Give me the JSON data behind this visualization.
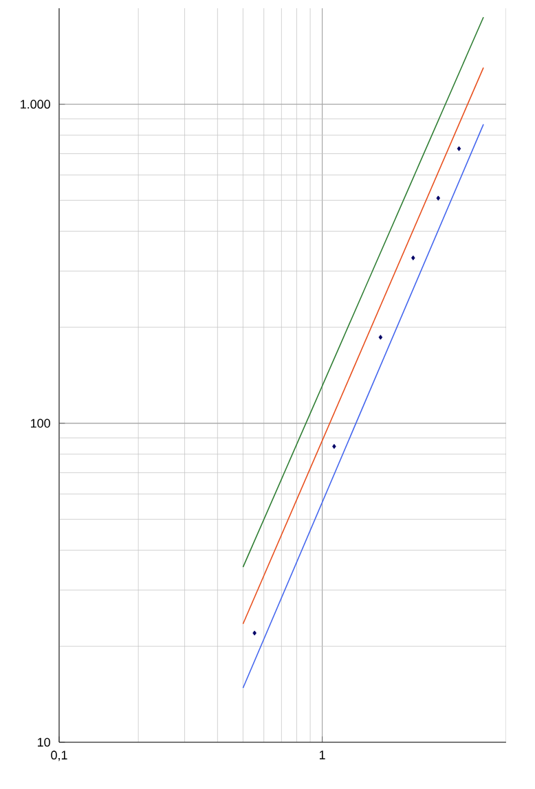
{
  "chart_data": {
    "type": "line",
    "log": "xy",
    "grid": true,
    "xlim": [
      0.1,
      5
    ],
    "ylim": [
      10,
      2000
    ],
    "xticks": [
      {
        "value": 0.1,
        "label": "0,1"
      },
      1
    ],
    "yticks": [
      10,
      100,
      {
        "value": 1000,
        "label": "1.000"
      }
    ],
    "series": [
      {
        "color": "#2e7d32",
        "x": [
          0.5,
          4.1
        ],
        "values": [
          35.4,
          1875
        ],
        "marker": "none"
      },
      {
        "color": "#e8501e",
        "x": [
          0.5,
          4.1
        ],
        "values": [
          23.5,
          1303
        ],
        "marker": "none"
      },
      {
        "color": "#4466ee",
        "x": [
          0.5,
          4.1
        ],
        "values": [
          14.8,
          865
        ],
        "marker": "none"
      },
      {
        "type": "scatter",
        "color": "#000066",
        "x": [
          0.553,
          1.11,
          1.666,
          2.216,
          2.76,
          3.31
        ],
        "values": [
          22,
          84.6,
          186,
          330,
          508,
          726
        ],
        "marker": "diamond"
      }
    ]
  }
}
